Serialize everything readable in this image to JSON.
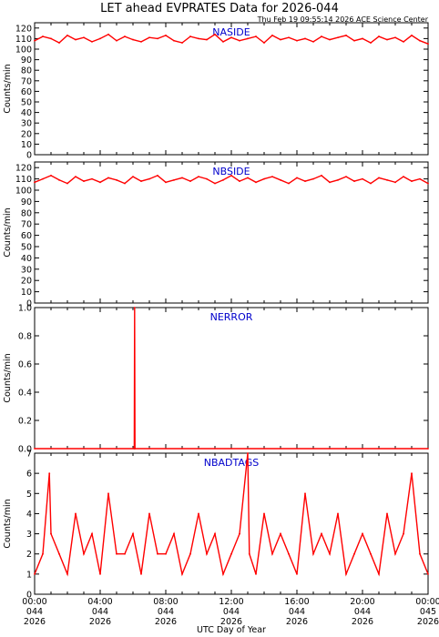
{
  "header": {
    "title": "LET ahead EVPRATES Data for 2026-044",
    "subtitle": "Thu Feb 19 09:55:14 2026 ACE Science Center"
  },
  "colors": {
    "data": "#ff0000",
    "panel_label": "#0000cc",
    "axis": "#000000",
    "background": "#ffffff"
  },
  "chart_data": [
    {
      "type": "line",
      "panel_label": "NASIDE",
      "ylabel": "Counts/min",
      "ylim": [
        0,
        125
      ],
      "yticks": [
        0,
        10,
        20,
        30,
        40,
        50,
        60,
        70,
        80,
        90,
        100,
        110,
        120
      ],
      "ytick_labels": [
        "0",
        "10",
        "20",
        "30",
        "40",
        "50",
        "60",
        "70",
        "80",
        "90",
        "100",
        "110",
        "120"
      ],
      "x_hours": [
        0,
        0.5,
        1,
        1.5,
        2,
        2.5,
        3,
        3.5,
        4,
        4.5,
        5,
        5.5,
        6,
        6.5,
        7,
        7.5,
        8,
        8.5,
        9,
        9.5,
        10,
        10.5,
        11,
        11.5,
        12,
        12.5,
        13,
        13.5,
        14,
        14.5,
        15,
        15.5,
        16,
        16.5,
        17,
        17.5,
        18,
        18.5,
        19,
        19.5,
        20,
        20.5,
        21,
        21.5,
        22,
        22.5,
        23,
        23.5,
        24
      ],
      "values": [
        108,
        112,
        110,
        106,
        113,
        109,
        111,
        107,
        110,
        114,
        108,
        112,
        109,
        107,
        111,
        110,
        113,
        108,
        106,
        112,
        110,
        109,
        114,
        107,
        111,
        108,
        110,
        112,
        106,
        113,
        109,
        111,
        108,
        110,
        107,
        112,
        109,
        111,
        113,
        108,
        110,
        106,
        112,
        109,
        111,
        107,
        113,
        108,
        105
      ],
      "grid": false
    },
    {
      "type": "line",
      "panel_label": "NBSIDE",
      "ylabel": "Counts/min",
      "ylim": [
        0,
        125
      ],
      "yticks": [
        0,
        10,
        20,
        30,
        40,
        50,
        60,
        70,
        80,
        90,
        100,
        110,
        120
      ],
      "ytick_labels": [
        "0",
        "10",
        "20",
        "30",
        "40",
        "50",
        "60",
        "70",
        "80",
        "90",
        "100",
        "110",
        "120"
      ],
      "x_hours": [
        0,
        0.5,
        1,
        1.5,
        2,
        2.5,
        3,
        3.5,
        4,
        4.5,
        5,
        5.5,
        6,
        6.5,
        7,
        7.5,
        8,
        8.5,
        9,
        9.5,
        10,
        10.5,
        11,
        11.5,
        12,
        12.5,
        13,
        13.5,
        14,
        14.5,
        15,
        15.5,
        16,
        16.5,
        17,
        17.5,
        18,
        18.5,
        19,
        19.5,
        20,
        20.5,
        21,
        21.5,
        22,
        22.5,
        23,
        23.5,
        24
      ],
      "values": [
        107,
        110,
        113,
        109,
        106,
        112,
        108,
        110,
        107,
        111,
        109,
        106,
        112,
        108,
        110,
        113,
        107,
        109,
        111,
        108,
        112,
        110,
        106,
        109,
        113,
        108,
        111,
        107,
        110,
        112,
        109,
        106,
        111,
        108,
        110,
        113,
        107,
        109,
        112,
        108,
        110,
        106,
        111,
        109,
        107,
        112,
        108,
        110,
        106
      ],
      "grid": false
    },
    {
      "type": "line",
      "panel_label": "NERROR",
      "ylabel": "Counts/min",
      "ylim": [
        0,
        1.0
      ],
      "yticks": [
        0,
        0.2,
        0.4,
        0.6,
        0.8,
        1.0
      ],
      "ytick_labels": [
        "0.0",
        "0.2",
        "0.4",
        "0.6",
        "0.8",
        "1.0"
      ],
      "x_hours": [
        0,
        6.08,
        6.1,
        6.12,
        24
      ],
      "values": [
        0,
        0,
        1,
        0,
        0
      ],
      "grid": false
    },
    {
      "type": "line",
      "panel_label": "NBADTAGS",
      "ylabel": "Counts/min",
      "ylim": [
        0,
        7
      ],
      "yticks": [
        0,
        1,
        2,
        3,
        4,
        5,
        6,
        7
      ],
      "ytick_labels": [
        "0",
        "1",
        "2",
        "3",
        "4",
        "5",
        "6",
        "7"
      ],
      "x_hours": [
        0,
        0.5,
        0.9,
        1,
        1.5,
        2,
        2.5,
        3,
        3.5,
        4,
        4.5,
        5,
        5.5,
        6,
        6.5,
        7,
        7.5,
        8,
        8.5,
        9,
        9.5,
        10,
        10.5,
        11,
        11.5,
        12,
        12.5,
        13,
        13.1,
        13.5,
        14,
        14.5,
        15,
        15.5,
        16,
        16.5,
        17,
        17.5,
        18,
        18.5,
        19,
        19.5,
        20,
        20.5,
        21,
        21.5,
        22,
        22.5,
        23,
        23.5,
        24
      ],
      "values": [
        1,
        2,
        6,
        3,
        2,
        1,
        4,
        2,
        3,
        1,
        5,
        2,
        2,
        3,
        1,
        4,
        2,
        2,
        3,
        1,
        2,
        4,
        2,
        3,
        1,
        2,
        3,
        7,
        2,
        1,
        4,
        2,
        3,
        2,
        1,
        5,
        2,
        3,
        2,
        4,
        1,
        2,
        3,
        2,
        1,
        4,
        2,
        3,
        6,
        2,
        1
      ],
      "grid": false
    }
  ],
  "xaxis": {
    "label": "UTC Day of Year",
    "xlim_hours": [
      0,
      24
    ],
    "ticks_hours": [
      0,
      4,
      8,
      12,
      16,
      20,
      24
    ],
    "tick_times": [
      "00:00",
      "04:00",
      "08:00",
      "12:00",
      "16:00",
      "20:00",
      "00:00"
    ],
    "tick_days": [
      "044",
      "044",
      "044",
      "044",
      "044",
      "044",
      "045"
    ],
    "tick_years": [
      "2026",
      "2026",
      "2026",
      "2026",
      "2026",
      "2026",
      "2026"
    ]
  }
}
